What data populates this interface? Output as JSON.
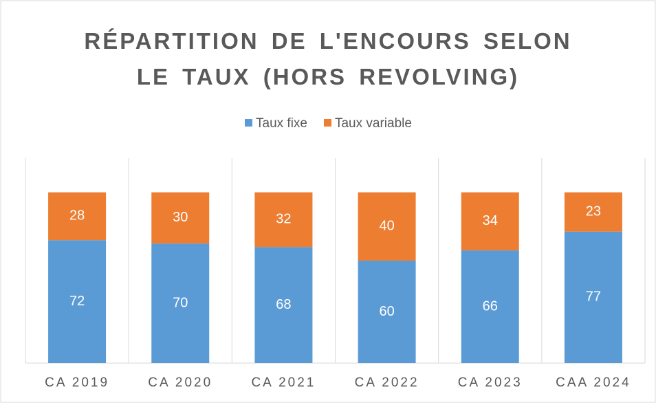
{
  "chart_data": {
    "type": "stacked_bar",
    "title": "RÉPARTITION DE L'ENCOURS SELON LE TAUX (HORS REVOLVING)",
    "categories": [
      "CA 2019",
      "CA 2020",
      "CA 2021",
      "CA 2022",
      "CA 2023",
      "CAA 2024"
    ],
    "series": [
      {
        "name": "Taux fixe",
        "color": "#5b9bd5",
        "values": [
          72,
          70,
          68,
          60,
          66,
          77
        ]
      },
      {
        "name": "Taux variable",
        "color": "#ed7d31",
        "values": [
          28,
          30,
          32,
          40,
          34,
          23
        ]
      }
    ],
    "ylim": [
      0,
      120
    ],
    "legend": "top"
  }
}
